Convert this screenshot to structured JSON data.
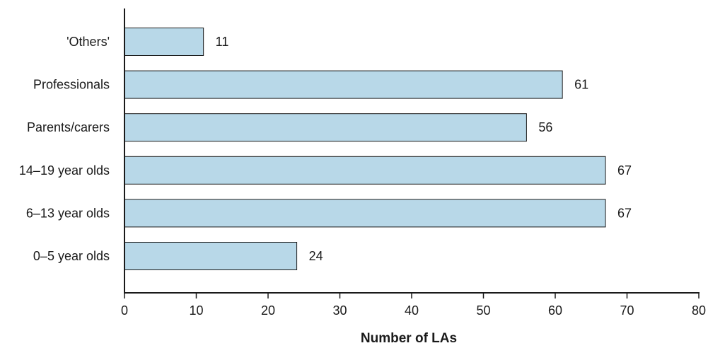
{
  "chart_data": {
    "type": "bar",
    "orientation": "horizontal",
    "title": "",
    "xlabel": "Number of LAs",
    "ylabel": "",
    "categories": [
      "'Others'",
      "Professionals",
      "Parents/carers",
      "14–19 year olds",
      "6–13 year olds",
      "0–5 year olds"
    ],
    "values": [
      11,
      61,
      56,
      67,
      67,
      24
    ],
    "data_labels": [
      "11",
      "61",
      "56",
      "67",
      "67",
      "24"
    ],
    "xlim": [
      0,
      80
    ],
    "xticks": [
      0,
      10,
      20,
      30,
      40,
      50,
      60,
      70,
      80
    ],
    "grid": false,
    "legend": "none",
    "bar_color": "#b8d8e8",
    "axis_color": "#1a1a1a"
  }
}
